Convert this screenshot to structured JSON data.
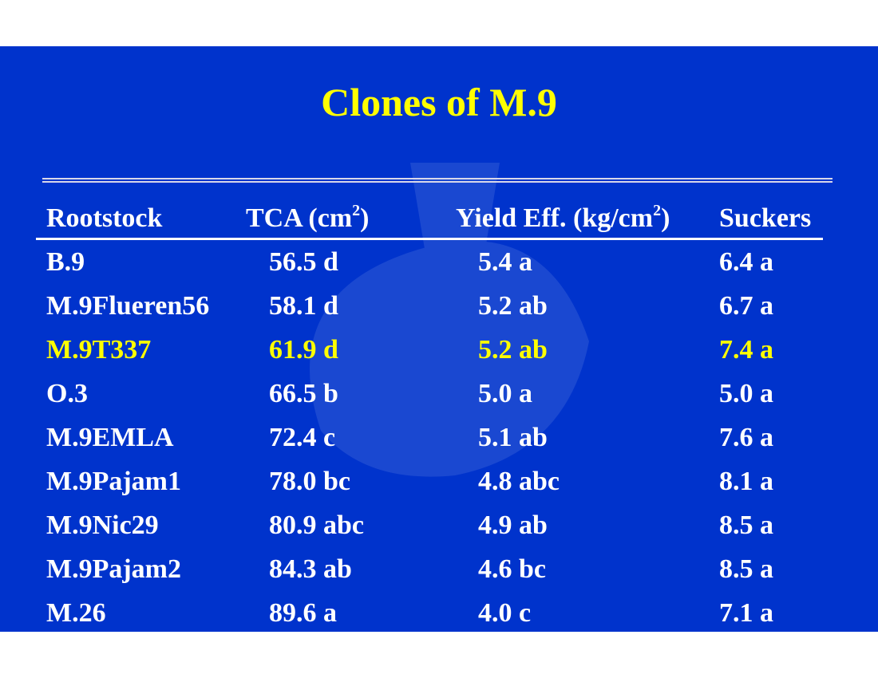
{
  "title": "Clones of M.9",
  "colors": {
    "background": "#0033cc",
    "title": "#ffff00",
    "text": "#ffffff",
    "highlight": "#ffff00",
    "rule": "#d8d8ea"
  },
  "table": {
    "headers": {
      "rootstock": "Rootstock",
      "tca": "TCA (cm",
      "tca_sup": "2",
      "tca_close": ")",
      "yield": "Yield Eff. (kg/cm",
      "yield_sup": "2",
      "yield_close": ")",
      "suckers": "Suckers"
    },
    "rows": [
      {
        "rootstock": "B.9",
        "tca": "56.5 d",
        "yield": "5.4 a",
        "suckers": "6.4 a",
        "highlight": false
      },
      {
        "rootstock": "M.9Flueren56",
        "tca": "58.1 d",
        "yield": "5.2 ab",
        "suckers": "6.7 a",
        "highlight": false
      },
      {
        "rootstock": "M.9T337",
        "tca": "61.9 d",
        "yield": "5.2 ab",
        "suckers": "7.4 a",
        "highlight": true
      },
      {
        "rootstock": "O.3",
        "tca": "66.5 b",
        "yield": "5.0 a",
        "suckers": "5.0 a",
        "highlight": false
      },
      {
        "rootstock": "M.9EMLA",
        "tca": "72.4 c",
        "yield": "5.1 ab",
        "suckers": "7.6 a",
        "highlight": false
      },
      {
        "rootstock": "M.9Pajam1",
        "tca": "78.0 bc",
        "yield": "4.8 abc",
        "suckers": "8.1 a",
        "highlight": false
      },
      {
        "rootstock": "M.9Nic29",
        "tca": "80.9 abc",
        "yield": "4.9 ab",
        "suckers": "8.5 a",
        "highlight": false
      },
      {
        "rootstock": "M.9Pajam2",
        "tca": "84.3 ab",
        "yield": "4.6 bc",
        "suckers": "8.5 a",
        "highlight": false
      },
      {
        "rootstock": "M.26",
        "tca": "89.6 a",
        "yield": "4.0 c",
        "suckers": "7.1 a",
        "highlight": false
      }
    ]
  }
}
